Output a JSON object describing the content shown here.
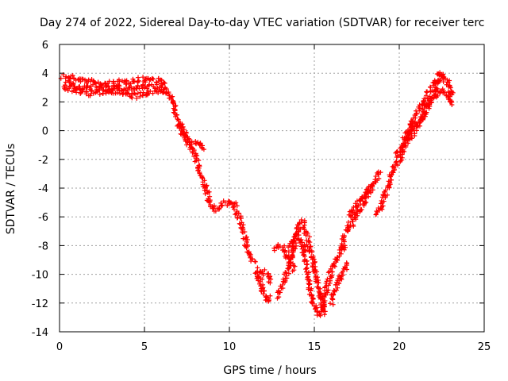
{
  "chart_data": {
    "type": "scatter",
    "title": "Day 274 of 2022, Sidereal Day-to-day VTEC variation (SDTVAR) for receiver terc",
    "xlabel": "GPS time / hours",
    "ylabel": "SDTVAR / TECUs",
    "xlim": [
      0,
      25
    ],
    "ylim": [
      -14,
      6
    ],
    "xticks": [
      0,
      5,
      10,
      15,
      20,
      25
    ],
    "yticks": [
      -14,
      -12,
      -10,
      -8,
      -6,
      -4,
      -2,
      0,
      2,
      4,
      6
    ],
    "grid": true,
    "marker": "+",
    "series": [
      {
        "name": "SDTVAR",
        "color": "#ff0000",
        "curves": [
          [
            [
              0.2,
              3.8
            ],
            [
              1.0,
              3.6
            ],
            [
              1.8,
              3.4
            ],
            [
              2.5,
              3.2
            ],
            [
              3.2,
              3.3
            ],
            [
              4.0,
              3.4
            ],
            [
              4.5,
              3.5
            ],
            [
              5.2,
              3.6
            ],
            [
              5.8,
              3.5
            ],
            [
              6.2,
              3.3
            ]
          ],
          [
            [
              0.2,
              3.0
            ],
            [
              1.0,
              2.8
            ],
            [
              1.8,
              2.6
            ],
            [
              2.5,
              2.7
            ],
            [
              3.2,
              2.8
            ],
            [
              4.0,
              2.5
            ],
            [
              4.5,
              2.4
            ],
            [
              5.2,
              2.6
            ],
            [
              5.8,
              2.7
            ],
            [
              6.3,
              2.9
            ]
          ],
          [
            [
              0.4,
              3.3
            ],
            [
              1.2,
              3.0
            ],
            [
              2.2,
              2.9
            ],
            [
              3.0,
              3.0
            ],
            [
              3.8,
              2.9
            ],
            [
              4.8,
              3.0
            ],
            [
              5.5,
              3.1
            ],
            [
              6.0,
              3.0
            ]
          ],
          [
            [
              6.2,
              2.8
            ],
            [
              6.6,
              2.2
            ],
            [
              6.9,
              1.0
            ],
            [
              7.2,
              0.3
            ],
            [
              7.4,
              -0.5
            ],
            [
              7.7,
              -1.0
            ],
            [
              8.0,
              -1.8
            ],
            [
              8.3,
              -3.0
            ],
            [
              8.6,
              -4.0
            ],
            [
              8.9,
              -5.2
            ],
            [
              9.2,
              -5.6
            ]
          ],
          [
            [
              7.0,
              0.5
            ],
            [
              7.3,
              -0.2
            ],
            [
              7.6,
              -0.9
            ],
            [
              8.0,
              -0.8
            ],
            [
              8.3,
              -0.8
            ],
            [
              8.5,
              -1.3
            ]
          ],
          [
            [
              9.2,
              -5.4
            ],
            [
              9.6,
              -5.2
            ],
            [
              10.0,
              -4.9
            ],
            [
              10.3,
              -5.2
            ],
            [
              10.6,
              -6.2
            ],
            [
              10.9,
              -7.4
            ],
            [
              11.1,
              -8.5
            ],
            [
              11.3,
              -8.9
            ],
            [
              11.5,
              -9.1
            ]
          ],
          [
            [
              11.6,
              -9.7
            ],
            [
              11.8,
              -10.4
            ],
            [
              12.0,
              -11.2
            ],
            [
              12.2,
              -11.8
            ],
            [
              12.4,
              -11.5
            ]
          ],
          [
            [
              11.7,
              -10.2
            ],
            [
              12.0,
              -9.8
            ],
            [
              12.2,
              -10.0
            ],
            [
              12.4,
              -10.6
            ]
          ],
          [
            [
              12.6,
              -8.2
            ],
            [
              12.9,
              -8.0
            ],
            [
              13.2,
              -8.2
            ],
            [
              13.4,
              -8.7
            ],
            [
              13.6,
              -9.2
            ],
            [
              13.8,
              -9.7
            ]
          ],
          [
            [
              12.8,
              -11.5
            ],
            [
              13.0,
              -11.0
            ],
            [
              13.2,
              -10.4
            ],
            [
              13.4,
              -10.0
            ],
            [
              13.5,
              -9.5
            ],
            [
              13.7,
              -8.5
            ],
            [
              13.9,
              -7.5
            ],
            [
              14.1,
              -6.5
            ],
            [
              14.3,
              -6.3
            ],
            [
              14.5,
              -7.0
            ],
            [
              14.7,
              -8.0
            ],
            [
              14.9,
              -9.0
            ],
            [
              15.1,
              -10.0
            ],
            [
              15.3,
              -11.0
            ],
            [
              15.5,
              -12.2
            ],
            [
              15.6,
              -12.8
            ]
          ],
          [
            [
              13.5,
              -8.3
            ],
            [
              13.8,
              -7.6
            ],
            [
              14.1,
              -7.4
            ],
            [
              14.3,
              -7.8
            ],
            [
              14.5,
              -9.2
            ],
            [
              14.7,
              -10.8
            ],
            [
              14.9,
              -11.8
            ],
            [
              15.1,
              -12.4
            ],
            [
              15.3,
              -12.8
            ]
          ],
          [
            [
              15.4,
              -12.6
            ],
            [
              15.6,
              -11.5
            ],
            [
              15.8,
              -10.5
            ],
            [
              16.0,
              -9.8
            ],
            [
              16.2,
              -9.2
            ],
            [
              16.5,
              -8.5
            ],
            [
              16.8,
              -8.0
            ]
          ],
          [
            [
              16.0,
              -12.0
            ],
            [
              16.2,
              -11.2
            ],
            [
              16.4,
              -10.4
            ],
            [
              16.7,
              -9.8
            ],
            [
              16.9,
              -9.2
            ]
          ],
          [
            [
              16.6,
              -8.0
            ],
            [
              16.9,
              -7.0
            ],
            [
              17.2,
              -6.5
            ],
            [
              17.5,
              -5.8
            ],
            [
              17.8,
              -5.2
            ],
            [
              18.1,
              -4.6
            ],
            [
              18.4,
              -4.0
            ],
            [
              18.6,
              -3.4
            ],
            [
              18.9,
              -2.9
            ]
          ],
          [
            [
              17.0,
              -6.2
            ],
            [
              17.4,
              -5.4
            ],
            [
              17.8,
              -4.6
            ],
            [
              18.1,
              -4.2
            ],
            [
              18.4,
              -3.8
            ]
          ],
          [
            [
              18.7,
              -5.8
            ],
            [
              19.0,
              -5.0
            ],
            [
              19.2,
              -4.4
            ],
            [
              19.4,
              -3.8
            ],
            [
              19.6,
              -2.9
            ],
            [
              19.8,
              -2.2
            ]
          ],
          [
            [
              19.8,
              -1.8
            ],
            [
              20.1,
              -1.3
            ],
            [
              20.4,
              -0.4
            ],
            [
              20.7,
              0.4
            ],
            [
              21.0,
              1.2
            ],
            [
              21.3,
              1.8
            ],
            [
              21.6,
              2.5
            ],
            [
              22.0,
              3.2
            ],
            [
              22.3,
              3.6
            ],
            [
              22.6,
              3.8
            ],
            [
              22.9,
              3.2
            ],
            [
              23.1,
              2.5
            ]
          ],
          [
            [
              19.9,
              -2.3
            ],
            [
              20.2,
              -1.5
            ],
            [
              20.5,
              -0.5
            ],
            [
              20.8,
              0.3
            ],
            [
              21.1,
              0.5
            ],
            [
              21.4,
              1.0
            ],
            [
              21.7,
              1.7
            ],
            [
              22.0,
              2.2
            ],
            [
              22.3,
              2.6
            ],
            [
              22.6,
              2.8
            ],
            [
              22.9,
              2.2
            ],
            [
              23.1,
              1.8
            ]
          ],
          [
            [
              20.5,
              -0.8
            ],
            [
              20.8,
              -0.2
            ],
            [
              21.2,
              0.6
            ],
            [
              21.6,
              1.6
            ],
            [
              22.0,
              2.4
            ],
            [
              22.2,
              3.4
            ],
            [
              22.4,
              4.0
            ],
            [
              22.6,
              3.4
            ]
          ]
        ]
      }
    ]
  }
}
